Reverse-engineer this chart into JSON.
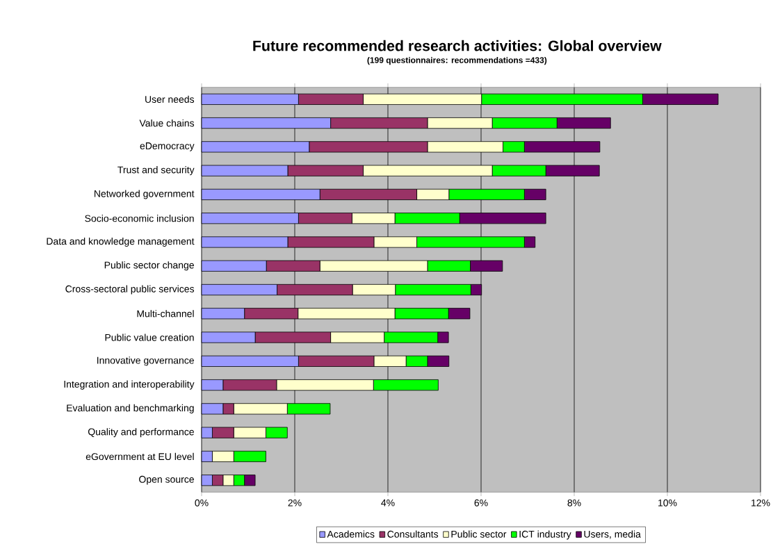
{
  "chart_data": {
    "type": "bar",
    "orientation": "horizontal",
    "stacked": true,
    "title": "Future recommended research activities: Global overview",
    "subtitle": "(199 questionnaires: recommendations =433)",
    "categories": [
      "User needs",
      "Value chains",
      "eDemocracy",
      "Trust and security",
      "Networked government",
      "Socio-economic inclusion",
      "Data and knowledge management",
      "Public sector change",
      "Cross-sectoral public services",
      "Multi-channel",
      "Public value creation",
      "Innovative governance",
      "Integration and interoperability",
      "Evaluation and benchmarking",
      "Quality and performance",
      "eGovernment at EU level",
      "Open source"
    ],
    "series": [
      {
        "name": "Academics",
        "color": "#9999ff",
        "values": [
          2.08,
          2.77,
          2.31,
          1.85,
          2.54,
          2.08,
          1.85,
          1.39,
          1.62,
          0.92,
          1.15,
          2.08,
          0.46,
          0.46,
          0.23,
          0.23,
          0.23
        ]
      },
      {
        "name": "Consultants",
        "color": "#993366",
        "values": [
          1.39,
          2.08,
          2.54,
          1.62,
          2.08,
          1.15,
          1.85,
          1.15,
          1.62,
          1.15,
          1.62,
          1.62,
          1.15,
          0.23,
          0.46,
          0,
          0.23
        ]
      },
      {
        "name": "Public sector",
        "color": "#ffffcc",
        "values": [
          2.54,
          1.39,
          1.62,
          2.77,
          0.69,
          0.92,
          0.92,
          2.31,
          0.92,
          2.08,
          1.15,
          0.69,
          2.08,
          1.15,
          0.69,
          0.46,
          0.23
        ]
      },
      {
        "name": "ICT industry",
        "color": "#00ff00",
        "values": [
          3.46,
          1.39,
          0.46,
          1.15,
          1.62,
          1.39,
          2.31,
          0.92,
          1.62,
          1.15,
          1.15,
          0.46,
          1.39,
          0.92,
          0.46,
          0.69,
          0.23
        ]
      },
      {
        "name": "Users, media",
        "color": "#660066",
        "values": [
          1.62,
          1.15,
          1.62,
          1.15,
          0.46,
          1.85,
          0.23,
          0.69,
          0.23,
          0.46,
          0.23,
          0.46,
          0,
          0,
          0,
          0,
          0.23
        ]
      }
    ],
    "xlim": [
      0,
      12
    ],
    "xticks": [
      {
        "value": 0,
        "label": "0%"
      },
      {
        "value": 2,
        "label": "2%"
      },
      {
        "value": 4,
        "label": "4%"
      },
      {
        "value": 6,
        "label": "6%"
      },
      {
        "value": 8,
        "label": "8%"
      },
      {
        "value": 10,
        "label": "10%"
      },
      {
        "value": 12,
        "label": "12%"
      }
    ],
    "grid": "x",
    "legend": "bottom"
  }
}
